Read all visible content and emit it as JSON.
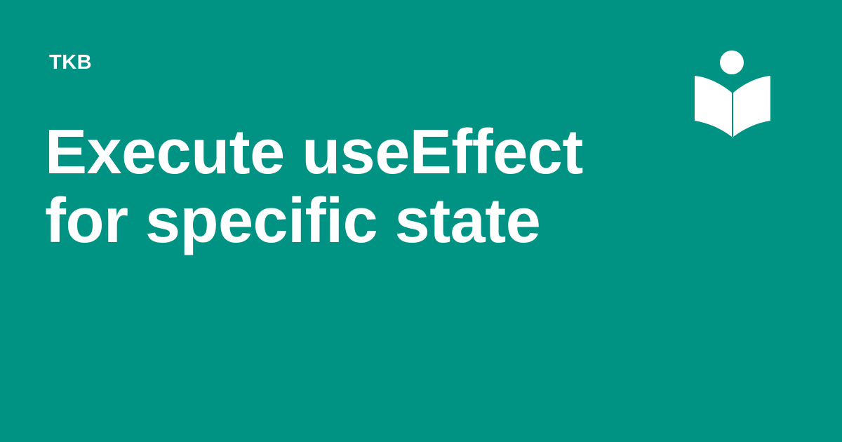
{
  "brand": {
    "name": "TKB",
    "logo_icon": "reader-book-icon"
  },
  "article": {
    "title_lines": [
      "Execute useEffect",
      "for specific state"
    ]
  },
  "colors": {
    "background": "#009383",
    "foreground": "#ffffff"
  }
}
